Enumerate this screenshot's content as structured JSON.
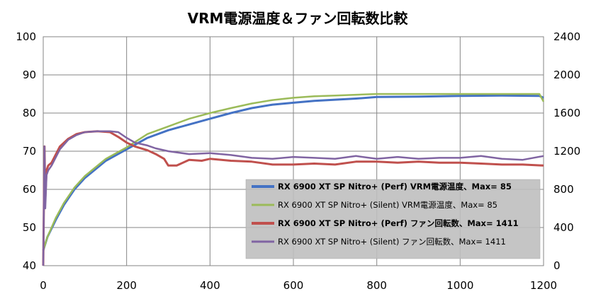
{
  "chart_data": {
    "type": "line",
    "title": "VRM電源温度＆ファン回転数比較",
    "xlabel": "",
    "ylabel": "",
    "xlim": [
      0,
      1200
    ],
    "ylim": [
      40,
      100
    ],
    "y2lim": [
      0,
      2400
    ],
    "x_ticks": [
      "0",
      "200",
      "400",
      "600",
      "800",
      "1000",
      "1200"
    ],
    "y_ticks": [
      "40",
      "50",
      "60",
      "70",
      "80",
      "90",
      "100"
    ],
    "y2_ticks": [
      "0",
      "400",
      "800",
      "1200",
      "1600",
      "2000",
      "2400"
    ],
    "grid": true,
    "legend_position": "lower-right",
    "series": [
      {
        "name": "RX 6900 XT SP Nitro+ (Perf) VRM電源温度、Max= 85",
        "axis": "left",
        "color": "#4472C4",
        "bold": true,
        "x": [
          0,
          10,
          30,
          50,
          75,
          100,
          150,
          200,
          250,
          300,
          350,
          400,
          450,
          500,
          550,
          600,
          650,
          700,
          750,
          800,
          900,
          1000,
          1100,
          1190,
          1200
        ],
        "y": [
          44,
          47.5,
          52,
          56,
          60,
          63,
          67.5,
          70.5,
          73.5,
          75.5,
          77,
          78.5,
          80,
          81.3,
          82.2,
          82.7,
          83.2,
          83.5,
          83.8,
          84.2,
          84.3,
          84.5,
          84.6,
          84.5,
          84
        ]
      },
      {
        "name": "RX 6900 XT SP Nitro+ (Silent) VRM電源温度、Max= 85",
        "axis": "left",
        "color": "#9BBB59",
        "bold": false,
        "x": [
          0,
          10,
          30,
          50,
          75,
          100,
          150,
          200,
          250,
          300,
          350,
          400,
          450,
          500,
          550,
          600,
          650,
          700,
          750,
          800,
          900,
          1000,
          1100,
          1190,
          1200
        ],
        "y": [
          44,
          47.5,
          52.5,
          56.5,
          60.5,
          63.5,
          68,
          71,
          74.5,
          76.5,
          78.5,
          80,
          81.3,
          82.5,
          83.4,
          84,
          84.4,
          84.6,
          84.8,
          85,
          85,
          85,
          85,
          85,
          83
        ]
      },
      {
        "name": "RX 6900 XT SP Nitro+ (Perf) ファン回転数、Max= 1411",
        "axis": "right",
        "color": "#C0504D",
        "bold": true,
        "x": [
          0,
          3,
          5,
          8,
          12,
          20,
          40,
          60,
          80,
          100,
          130,
          160,
          180,
          200,
          220,
          250,
          270,
          290,
          300,
          320,
          350,
          380,
          400,
          450,
          500,
          550,
          600,
          650,
          700,
          750,
          800,
          850,
          900,
          950,
          1000,
          1050,
          1100,
          1150,
          1200
        ],
        "y": [
          0,
          1250,
          700,
          1000,
          1050,
          1080,
          1250,
          1330,
          1380,
          1400,
          1410,
          1400,
          1350,
          1290,
          1250,
          1210,
          1170,
          1120,
          1050,
          1050,
          1110,
          1100,
          1120,
          1100,
          1090,
          1060,
          1060,
          1070,
          1060,
          1090,
          1090,
          1080,
          1090,
          1080,
          1080,
          1070,
          1060,
          1060,
          1050
        ]
      },
      {
        "name": "RX 6900 XT SP Nitro+ (Silent) ファン回転数、Max= 1411",
        "axis": "right",
        "color": "#8064A2",
        "bold": false,
        "x": [
          0,
          3,
          5,
          8,
          12,
          20,
          40,
          60,
          80,
          100,
          130,
          160,
          180,
          200,
          220,
          250,
          270,
          300,
          350,
          400,
          450,
          500,
          550,
          600,
          650,
          700,
          750,
          800,
          850,
          900,
          950,
          1000,
          1050,
          1100,
          1150,
          1200
        ],
        "y": [
          0,
          1250,
          600,
          950,
          1000,
          1050,
          1220,
          1320,
          1370,
          1400,
          1410,
          1410,
          1400,
          1340,
          1290,
          1260,
          1230,
          1200,
          1170,
          1180,
          1160,
          1130,
          1120,
          1140,
          1130,
          1120,
          1150,
          1120,
          1140,
          1120,
          1130,
          1130,
          1150,
          1120,
          1110,
          1150
        ]
      }
    ]
  }
}
